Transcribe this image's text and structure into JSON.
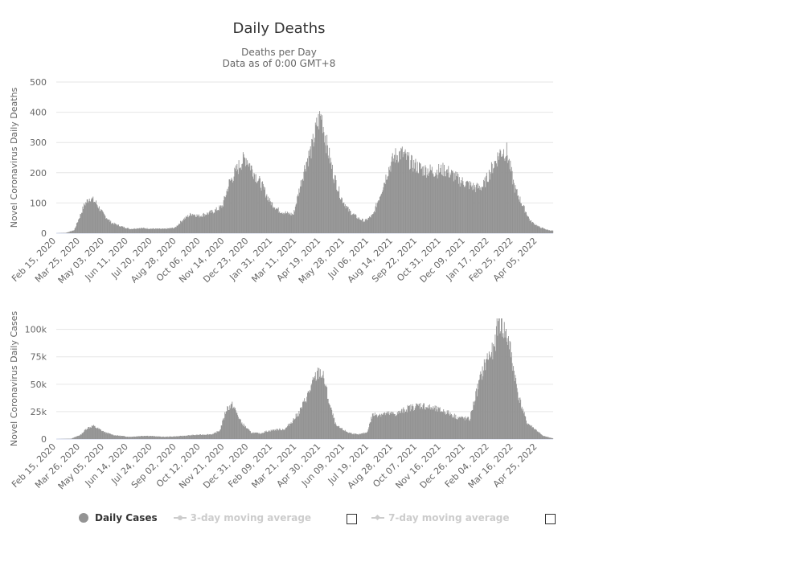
{
  "page": {
    "title": "Daily Deaths",
    "subtitle_line1": "Deaths per Day",
    "subtitle_line2": "Data as of 0:00 GMT+8"
  },
  "colors": {
    "series": "#939393",
    "grid": "#e6e6e6",
    "axis_text": "#666666",
    "title": "#333333"
  },
  "legend": {
    "items": [
      {
        "label": "Daily Cases",
        "state": "visible",
        "icon": "filled-circle"
      },
      {
        "label": "3-day moving average",
        "state": "hidden",
        "icon": "line-circle-marker"
      },
      {
        "label": "7-day moving average",
        "state": "hidden",
        "icon": "line-diamond-marker"
      }
    ]
  },
  "chart_data": [
    {
      "type": "bar",
      "title": "Daily Deaths",
      "subtitle": "Deaths per Day / Data as of 0:00 GMT+8",
      "ylabel": "Novel Coronavirus Daily Deaths",
      "ylim": [
        0,
        500
      ],
      "yticks": [
        0,
        100,
        200,
        300,
        400,
        500
      ],
      "ytick_labels": [
        "0",
        "100",
        "200",
        "300",
        "400",
        "500"
      ],
      "grid": true,
      "x_start": "2020-02-15",
      "x_end": "2022-05-13",
      "xtick_labels": [
        "Feb 15, 2020",
        "Mar 25, 2020",
        "May 03, 2020",
        "Jun 11, 2020",
        "Jul 20, 2020",
        "Aug 28, 2020",
        "Oct 06, 2020",
        "Nov 14, 2020",
        "Dec 23, 2020",
        "Jan 31, 2021",
        "Mar 11, 2021",
        "Apr 19, 2021",
        "May 28, 2021",
        "Jul 06, 2021",
        "Aug 14, 2021",
        "Sep 22, 2021",
        "Oct 31, 2021",
        "Dec 09, 2021",
        "Jan 17, 2022",
        "Feb 25, 2022",
        "Apr 05, 2022"
      ],
      "x": [
        "2020-02-15",
        "2020-03-01",
        "2020-03-15",
        "2020-03-25",
        "2020-04-01",
        "2020-04-10",
        "2020-04-20",
        "2020-05-01",
        "2020-05-15",
        "2020-06-01",
        "2020-06-15",
        "2020-07-01",
        "2020-07-20",
        "2020-08-10",
        "2020-08-28",
        "2020-09-10",
        "2020-09-25",
        "2020-10-06",
        "2020-10-25",
        "2020-11-05",
        "2020-11-14",
        "2020-11-25",
        "2020-12-05",
        "2020-12-15",
        "2020-12-23",
        "2021-01-05",
        "2021-01-20",
        "2021-01-31",
        "2021-02-15",
        "2021-03-01",
        "2021-03-11",
        "2021-03-20",
        "2021-03-31",
        "2021-04-10",
        "2021-04-19",
        "2021-04-26",
        "2021-05-03",
        "2021-05-15",
        "2021-05-28",
        "2021-06-10",
        "2021-06-25",
        "2021-07-06",
        "2021-07-20",
        "2021-08-01",
        "2021-08-14",
        "2021-08-25",
        "2021-09-05",
        "2021-09-22",
        "2021-10-10",
        "2021-10-31",
        "2021-11-15",
        "2021-11-30",
        "2021-12-09",
        "2021-12-25",
        "2022-01-05",
        "2022-01-17",
        "2022-01-28",
        "2022-02-07",
        "2022-02-15",
        "2022-02-25",
        "2022-03-10",
        "2022-03-25",
        "2022-04-05",
        "2022-04-20",
        "2022-05-05",
        "2022-05-13"
      ],
      "values": [
        0,
        1,
        10,
        60,
        95,
        118,
        100,
        65,
        35,
        22,
        14,
        17,
        15,
        14,
        18,
        45,
        65,
        57,
        68,
        78,
        90,
        165,
        200,
        235,
        250,
        200,
        150,
        105,
        75,
        65,
        62,
        140,
        230,
        280,
        360,
        390,
        310,
        200,
        120,
        75,
        50,
        40,
        60,
        130,
        210,
        255,
        265,
        230,
        210,
        205,
        210,
        190,
        175,
        160,
        150,
        155,
        200,
        240,
        270,
        270,
        150,
        85,
        40,
        20,
        10,
        8
      ]
    },
    {
      "type": "bar",
      "ylabel": "Novel Coronavirus Daily Cases",
      "ylim": [
        0,
        110000
      ],
      "yticks": [
        0,
        25000,
        50000,
        75000,
        100000
      ],
      "ytick_labels": [
        "0",
        "25k",
        "50k",
        "75k",
        "100k"
      ],
      "grid": true,
      "x_start": "2020-02-15",
      "x_end": "2022-05-13",
      "xtick_labels": [
        "Feb 15, 2020",
        "Mar 26, 2020",
        "May 05, 2020",
        "Jun 14, 2020",
        "Jul 24, 2020",
        "Sep 02, 2020",
        "Oct 12, 2020",
        "Nov 21, 2020",
        "Dec 31, 2020",
        "Feb 09, 2021",
        "Mar 21, 2021",
        "Apr 30, 2021",
        "Jun 09, 2021",
        "Jul 19, 2021",
        "Aug 28, 2021",
        "Oct 07, 2021",
        "Nov 16, 2021",
        "Dec 26, 2021",
        "Feb 04, 2022",
        "Mar 16, 2022",
        "Apr 25, 2022"
      ],
      "x": [
        "2020-02-15",
        "2020-03-10",
        "2020-03-26",
        "2020-04-05",
        "2020-04-15",
        "2020-04-25",
        "2020-05-05",
        "2020-05-20",
        "2020-06-14",
        "2020-07-10",
        "2020-08-10",
        "2020-09-02",
        "2020-09-25",
        "2020-10-12",
        "2020-10-30",
        "2020-11-10",
        "2020-11-21",
        "2020-12-01",
        "2020-12-15",
        "2020-12-31",
        "2021-01-15",
        "2021-01-25",
        "2021-02-09",
        "2021-02-25",
        "2021-03-10",
        "2021-03-21",
        "2021-04-05",
        "2021-04-15",
        "2021-04-23",
        "2021-04-30",
        "2021-05-10",
        "2021-05-20",
        "2021-06-09",
        "2021-06-25",
        "2021-07-10",
        "2021-07-19",
        "2021-08-05",
        "2021-08-28",
        "2021-09-15",
        "2021-10-07",
        "2021-10-25",
        "2021-11-16",
        "2021-12-05",
        "2021-12-26",
        "2022-01-05",
        "2022-01-15",
        "2022-01-25",
        "2022-02-04",
        "2022-02-12",
        "2022-02-20",
        "2022-02-28",
        "2022-03-16",
        "2022-03-30",
        "2022-04-15",
        "2022-04-25",
        "2022-05-13"
      ],
      "values": [
        0,
        300,
        4000,
        10000,
        12000,
        9000,
        6000,
        3500,
        2000,
        3000,
        2000,
        2500,
        3500,
        4000,
        4500,
        8000,
        28000,
        31000,
        15000,
        6000,
        5000,
        7000,
        8500,
        9000,
        17000,
        25000,
        42000,
        55000,
        62000,
        55000,
        30000,
        12000,
        6000,
        4000,
        6000,
        22000,
        23000,
        23000,
        28000,
        31000,
        28000,
        25000,
        20000,
        18000,
        40000,
        60000,
        75000,
        80000,
        110000,
        100000,
        90000,
        40000,
        15000,
        8000,
        3000,
        500
      ]
    }
  ]
}
